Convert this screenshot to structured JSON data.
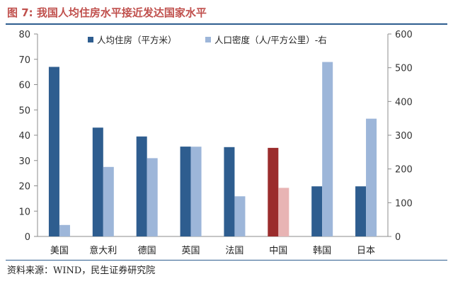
{
  "figure": {
    "title": "图 7:  我国人均住房水平接近发达国家水平",
    "source": "资料来源：WIND，民生证券研究院"
  },
  "chart_data": {
    "type": "bar",
    "categories": [
      "美国",
      "意大利",
      "德国",
      "英国",
      "法国",
      "中国",
      "韩国",
      "日本"
    ],
    "series": [
      {
        "name": "人均住房（平方米）",
        "axis": "left",
        "values": [
          67,
          43,
          39.5,
          35.5,
          35.3,
          35,
          19.8,
          19.8
        ],
        "color": "#2e5d8f",
        "highlight_color": "#9b2c2c"
      },
      {
        "name": "人口密度（人/平方公里）-右",
        "axis": "right",
        "values": [
          34,
          206,
          232,
          266,
          119,
          144,
          517,
          349
        ],
        "color": "#9db6d9",
        "highlight_color": "#e8b4b4"
      }
    ],
    "highlight_category": "中国",
    "ylim_left": [
      0,
      80
    ],
    "yticks_left": [
      0,
      10,
      20,
      30,
      40,
      50,
      60,
      70,
      80
    ],
    "ylim_right": [
      0,
      600
    ],
    "yticks_right": [
      0,
      100,
      200,
      300,
      400,
      500,
      600
    ],
    "legend_position": "top",
    "grid": false
  }
}
